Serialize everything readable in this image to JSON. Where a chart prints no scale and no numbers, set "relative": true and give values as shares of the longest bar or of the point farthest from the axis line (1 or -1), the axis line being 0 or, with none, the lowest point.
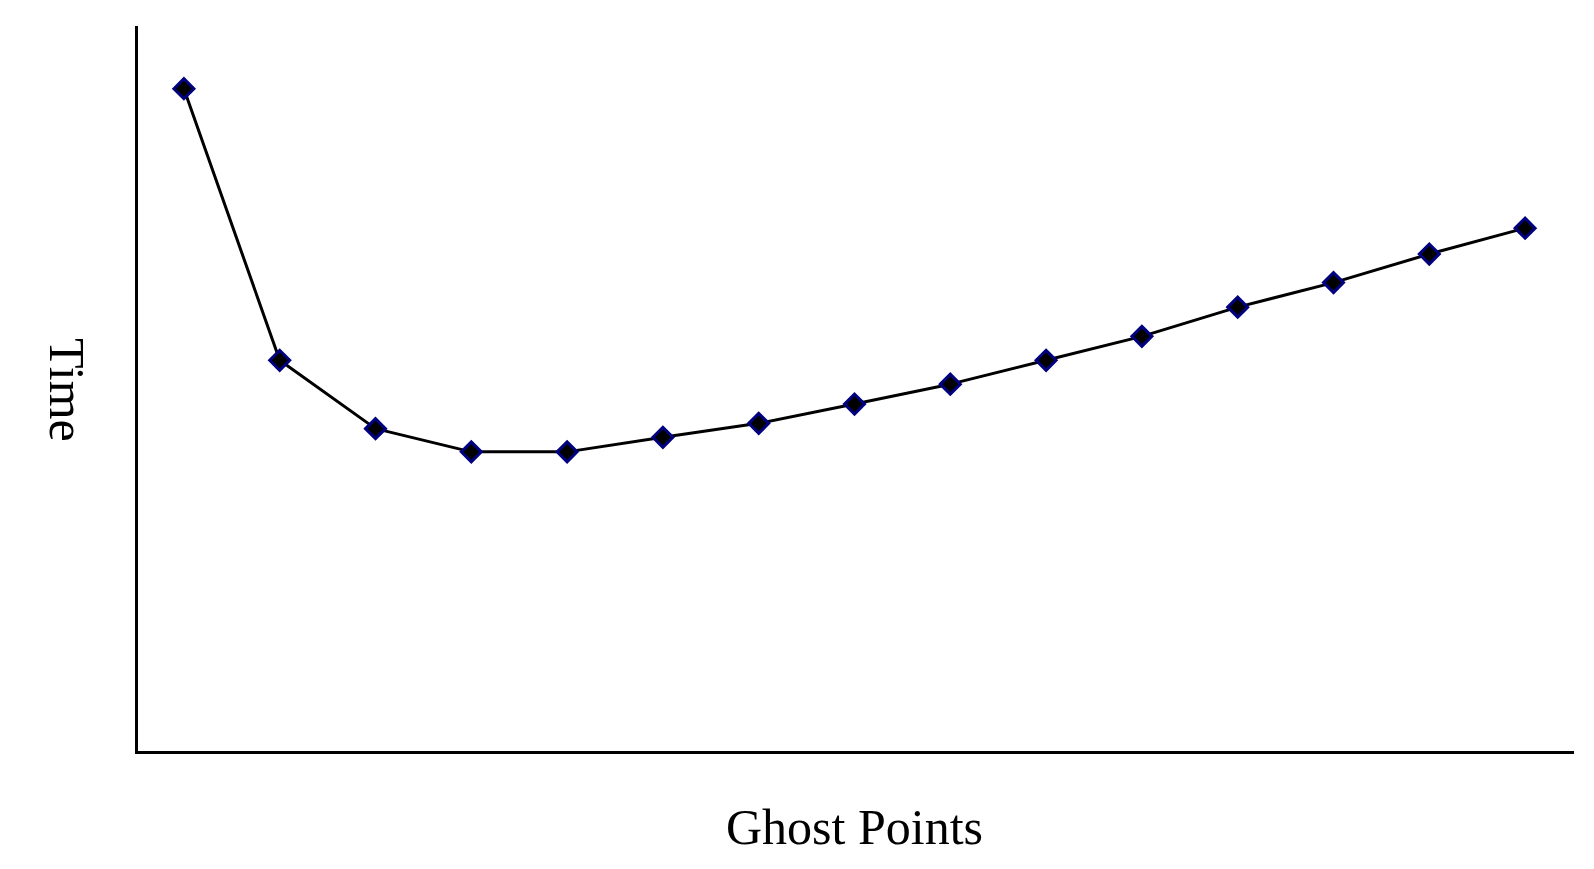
{
  "chart_data": {
    "type": "line",
    "xlabel": "Ghost Points",
    "ylabel": "Time",
    "relative": true,
    "marker": "diamond",
    "line_style": "solid",
    "grid": false,
    "legend": false,
    "categories": [
      null,
      null,
      null,
      null,
      null,
      null,
      null,
      null,
      null,
      null,
      null,
      null,
      null,
      null,
      null
    ],
    "series": [
      {
        "color": "#000000",
        "values": [
          1,
          0.591,
          0.488,
          0.453,
          0.453,
          0.475,
          0.496,
          0.525,
          0.555,
          0.591,
          0.627,
          0.671,
          0.708,
          0.751,
          0.79
        ]
      }
    ]
  }
}
